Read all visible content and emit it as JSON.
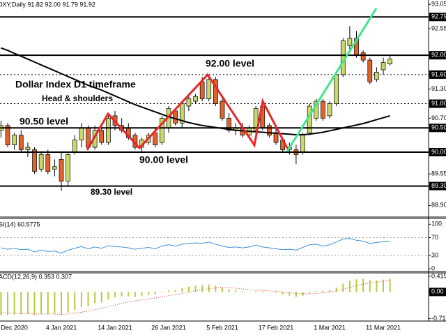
{
  "chart_data": [
    {
      "type": "candlestick",
      "header": "DXY,Daily  91.82 92.00 91.79 91.92",
      "categories": [
        null,
        null,
        "Dec 2020",
        null,
        null,
        null,
        null,
        null,
        null,
        "4 Jan 2021",
        null,
        null,
        null,
        null,
        null,
        null,
        null,
        "14 Jan 2021",
        null,
        null,
        null,
        null,
        null,
        null,
        null,
        "26 Jan 2021",
        null,
        null,
        null,
        null,
        null,
        null,
        null,
        "5 Feb 2021",
        null,
        null,
        null,
        null,
        null,
        null,
        null,
        "17 Feb 2021",
        null,
        null,
        null,
        null,
        null,
        null,
        null,
        "1 Mar 2021",
        null,
        null,
        null,
        null,
        null,
        null,
        null,
        "11 Mar 2021",
        null
      ],
      "open": [
        90.45,
        90.55,
        90.15,
        90.35,
        90.05,
        90.05,
        89.65,
        89.95,
        89.65,
        89.85,
        89.4,
        90.0,
        90.25,
        90.5,
        90.1,
        90.45,
        90.2,
        90.75,
        90.55,
        90.5,
        90.35,
        90.1,
        90.2,
        90.4,
        90.2,
        90.5,
        90.85,
        90.6,
        90.95,
        91.05,
        91.45,
        91.1,
        91.5,
        91.05,
        90.7,
        90.45,
        90.5,
        90.35,
        90.45,
        90.95,
        90.55,
        90.4,
        90.25,
        90.05,
        90.05,
        90.0,
        90.4,
        90.7,
        91.05,
        90.75,
        91.0,
        91.6,
        92.2,
        92.35,
        92.05,
        91.9,
        91.5,
        91.7,
        91.82
      ],
      "high": [
        90.65,
        90.6,
        90.4,
        90.45,
        90.2,
        90.1,
        90.0,
        90.05,
        89.85,
        90.0,
        90.0,
        90.35,
        90.6,
        90.55,
        90.55,
        90.55,
        90.75,
        90.85,
        90.7,
        90.6,
        90.4,
        90.3,
        90.4,
        90.5,
        90.75,
        90.95,
        90.9,
        91.05,
        91.15,
        91.2,
        91.55,
        91.6,
        91.55,
        91.1,
        90.8,
        90.6,
        90.6,
        90.55,
        90.95,
        91.1,
        90.6,
        90.5,
        90.3,
        90.2,
        90.15,
        90.4,
        91.0,
        91.1,
        91.1,
        91.05,
        91.65,
        92.35,
        92.6,
        92.5,
        92.1,
        91.95,
        91.75,
        91.95,
        92.0
      ],
      "low": [
        90.3,
        90.1,
        90.05,
        90.0,
        89.9,
        89.55,
        89.6,
        89.55,
        89.5,
        89.2,
        89.3,
        89.95,
        90.1,
        90.05,
        90.05,
        90.15,
        90.15,
        90.45,
        90.4,
        90.25,
        90.05,
        90.0,
        90.15,
        90.1,
        90.15,
        90.4,
        90.55,
        90.5,
        90.85,
        91.0,
        91.05,
        91.05,
        90.95,
        90.65,
        90.4,
        90.35,
        90.3,
        90.3,
        90.4,
        90.45,
        90.3,
        90.15,
        90.0,
        89.95,
        89.75,
        89.95,
        90.35,
        90.65,
        90.65,
        90.7,
        90.95,
        91.55,
        92.1,
        91.95,
        91.85,
        91.4,
        91.45,
        91.6,
        91.79
      ],
      "close": [
        90.55,
        90.15,
        90.35,
        90.05,
        90.1,
        89.6,
        89.95,
        89.6,
        89.7,
        89.4,
        89.95,
        90.25,
        90.5,
        90.1,
        90.45,
        90.2,
        90.7,
        90.55,
        90.45,
        90.3,
        90.1,
        90.25,
        90.35,
        90.15,
        90.7,
        90.9,
        90.6,
        91.0,
        91.1,
        91.15,
        91.1,
        91.5,
        91.0,
        90.7,
        90.45,
        90.5,
        90.35,
        90.5,
        90.9,
        90.5,
        90.35,
        90.2,
        90.05,
        90.1,
        89.95,
        90.35,
        90.95,
        91.05,
        90.7,
        91.0,
        91.6,
        92.3,
        92.35,
        92.0,
        91.9,
        91.45,
        91.65,
        91.85,
        91.92
      ],
      "up_color": "#c9d86a",
      "down_color": "#e2632c",
      "ma": {
        "color": "#000000",
        "values": [
          92.15,
          92.1,
          92.04,
          91.98,
          91.92,
          91.86,
          91.8,
          91.74,
          91.68,
          91.62,
          91.56,
          91.5,
          91.44,
          91.38,
          91.33,
          91.28,
          91.22,
          91.16,
          91.1,
          91.04,
          90.98,
          90.93,
          90.88,
          90.83,
          90.78,
          90.73,
          90.69,
          90.65,
          90.61,
          90.58,
          90.55,
          90.53,
          90.51,
          90.49,
          90.47,
          90.45,
          90.44,
          90.43,
          90.42,
          90.41,
          90.4,
          90.39,
          90.38,
          90.37,
          90.36,
          90.36,
          90.37,
          90.39,
          90.41,
          90.44,
          90.47,
          90.5,
          90.53,
          90.56,
          90.59,
          90.63,
          90.67,
          90.71,
          90.75
        ]
      },
      "ylim": [
        88.66,
        93.14
      ],
      "yticks": [
        93.05,
        92.79,
        92.55,
        {
          "value": 92,
          "label": "92.00"
        },
        {
          "value": 91.6,
          "label": "91.60"
        },
        {
          "value": 91.3,
          "label": "91.30"
        },
        {
          "value": 91,
          "label": "91.00"
        },
        {
          "value": 90.7,
          "label": "90.70"
        },
        {
          "value": 90.5,
          "label": "90.50"
        },
        {
          "value": 90,
          "label": "90.00"
        },
        89.55,
        {
          "value": 89.3,
          "label": "89.30"
        },
        {
          "value": 88.9,
          "label": "88.90"
        }
      ],
      "levels": [
        92.79,
        92,
        90.5,
        90,
        89.3
      ],
      "dotted_levels": [
        91.6,
        91
      ],
      "annotations": [
        "92.00 level",
        "Dollar Index D1 timeframe",
        "Head & shoulders",
        "90.50 level",
        "90.00 level",
        "89.30 level"
      ]
    },
    {
      "type": "line",
      "header": "SI(14) 60.5775",
      "color": "#3d8fd6",
      "values": [
        47,
        44,
        46,
        43,
        44,
        38,
        42,
        39,
        40,
        35,
        42,
        46,
        50,
        45,
        49,
        46,
        52,
        50,
        49,
        47,
        44,
        46,
        48,
        45,
        51,
        54,
        51,
        55,
        57,
        58,
        57,
        60,
        55,
        51,
        48,
        49,
        47,
        49,
        53,
        49,
        47,
        45,
        43,
        44,
        42,
        48,
        54,
        55,
        51,
        54,
        60,
        67,
        68,
        64,
        62,
        57,
        59,
        61,
        60.5775
      ],
      "ylim": [
        -6,
        113
      ],
      "yticks": [
        100,
        70,
        30,
        0
      ]
    },
    {
      "type": "histogram",
      "header": "ACD(12,26,9) 0.353 0.307",
      "color": "#b8c93c",
      "signal_color": "#d9423a",
      "values": [
        -0.62,
        -0.62,
        -0.6,
        -0.6,
        -0.58,
        -0.62,
        -0.6,
        -0.6,
        -0.58,
        -0.62,
        -0.55,
        -0.48,
        -0.4,
        -0.38,
        -0.3,
        -0.28,
        -0.2,
        -0.15,
        -0.12,
        -0.12,
        -0.13,
        -0.1,
        -0.08,
        -0.07,
        -0.02,
        0.04,
        0.05,
        0.1,
        0.14,
        0.17,
        0.18,
        0.2,
        0.17,
        0.12,
        0.07,
        0.05,
        0.02,
        0.0,
        0.03,
        0.02,
        0.0,
        -0.03,
        -0.07,
        -0.1,
        -0.13,
        -0.1,
        -0.04,
        0.02,
        0.03,
        0.06,
        0.12,
        0.22,
        0.3,
        0.34,
        0.35,
        0.32,
        0.31,
        0.33,
        0.353
      ],
      "signal": [
        -0.55,
        -0.56,
        -0.57,
        -0.58,
        -0.58,
        -0.59,
        -0.59,
        -0.59,
        -0.59,
        -0.6,
        -0.59,
        -0.57,
        -0.54,
        -0.51,
        -0.47,
        -0.44,
        -0.39,
        -0.35,
        -0.3,
        -0.27,
        -0.24,
        -0.21,
        -0.18,
        -0.16,
        -0.13,
        -0.1,
        -0.07,
        -0.04,
        -0.01,
        0.03,
        0.06,
        0.09,
        0.11,
        0.12,
        0.11,
        0.1,
        0.08,
        0.06,
        0.05,
        0.04,
        0.03,
        0.02,
        0.0,
        -0.02,
        -0.04,
        -0.05,
        -0.05,
        -0.04,
        -0.02,
        0.0,
        0.03,
        0.07,
        0.12,
        0.17,
        0.21,
        0.24,
        0.26,
        0.29,
        0.307
      ],
      "ylim": [
        -0.74,
        0.51
      ],
      "yticks": [
        0.419,
        {
          "value": 0,
          "label": "0.00"
        },
        -0.71
      ]
    }
  ]
}
